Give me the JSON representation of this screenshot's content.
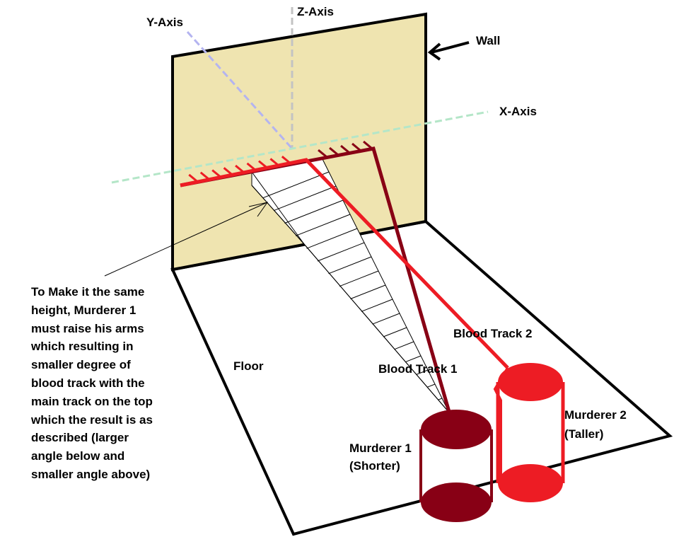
{
  "labels": {
    "y_axis": "Y-Axis",
    "z_axis": "Z-Axis",
    "x_axis": "X-Axis",
    "wall": "Wall",
    "floor": "Floor",
    "blood_track_1": "Blood Track 1",
    "blood_track_2": "Blood Track 2",
    "murderer_1_line1": "Murderer 1",
    "murderer_1_line2": "(Shorter)",
    "murderer_2_line1": "Murderer 2",
    "murderer_2_line2": "(Taller)"
  },
  "note_lines": [
    "To Make it the same",
    "height, Murderer 1",
    "must raise his arms",
    "which resulting in",
    "smaller degree of",
    "blood track with the",
    "main track on the top",
    "which the result is as",
    "described (larger",
    "angle below and",
    "smaller angle above)"
  ],
  "colors": {
    "wall_fill": "#efe4b0",
    "outline": "#000000",
    "track_1": "#880015",
    "track_2": "#ed1c24",
    "y_axis": "#b4b4f0",
    "z_axis": "#c3c3c3",
    "x_axis": "#b4e6c8"
  }
}
